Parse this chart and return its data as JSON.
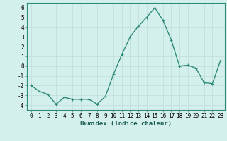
{
  "x": [
    0,
    1,
    2,
    3,
    4,
    5,
    6,
    7,
    8,
    9,
    10,
    11,
    12,
    13,
    14,
    15,
    16,
    17,
    18,
    19,
    20,
    21,
    22,
    23
  ],
  "y": [
    -2.0,
    -2.6,
    -2.9,
    -3.9,
    -3.2,
    -3.4,
    -3.4,
    -3.4,
    -3.9,
    -3.1,
    -0.8,
    1.2,
    3.0,
    4.1,
    5.0,
    6.0,
    4.7,
    2.7,
    0.0,
    0.1,
    -0.2,
    -1.7,
    -1.8,
    0.6
  ],
  "line_color": "#2e8b7a",
  "marker": "+",
  "marker_size": 3,
  "marker_edge_width": 0.8,
  "bg_color": "#d4f0ec",
  "grid_color": "#c0ddd8",
  "xlabel": "Humidex (Indice chaleur)",
  "xlim": [
    -0.5,
    23.5
  ],
  "ylim": [
    -4.5,
    6.5
  ],
  "yticks": [
    -4,
    -3,
    -2,
    -1,
    0,
    1,
    2,
    3,
    4,
    5,
    6
  ],
  "xticks": [
    0,
    1,
    2,
    3,
    4,
    5,
    6,
    7,
    8,
    9,
    10,
    11,
    12,
    13,
    14,
    15,
    16,
    17,
    18,
    19,
    20,
    21,
    22,
    23
  ],
  "xlabel_fontsize": 6.5,
  "tick_fontsize": 5.5,
  "line_width": 1.0,
  "spine_color": "#2e8b7a"
}
